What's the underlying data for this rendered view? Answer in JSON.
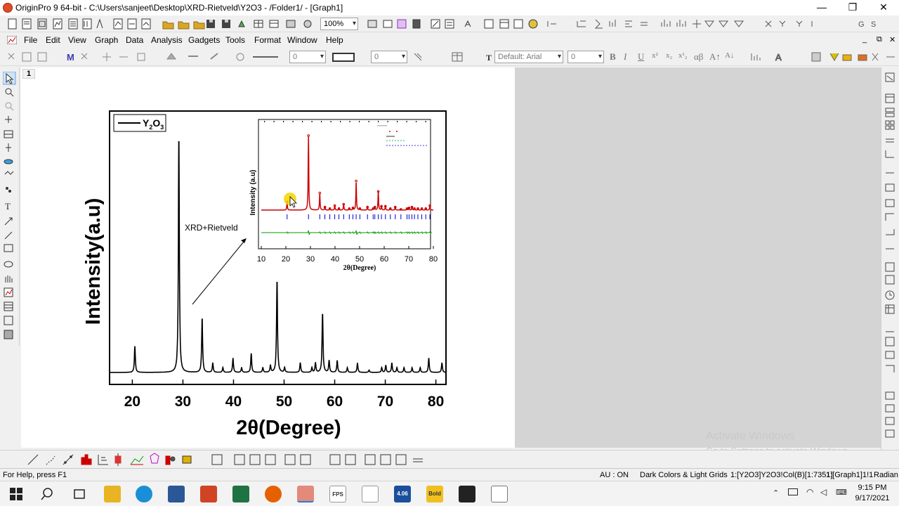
{
  "window": {
    "title": "OriginPro 9 64-bit - C:\\Users\\sanjeet\\Desktop\\XRD-Rietveld\\Y2O3 - /Folder1/ - [Graph1]",
    "minimize": "—",
    "maximize": "❐",
    "close": "✕",
    "sub_controls": [
      "_",
      "⧉",
      "✕"
    ]
  },
  "toolbar1": {
    "zoom": "100%"
  },
  "menu": [
    "File",
    "Edit",
    "View",
    "Graph",
    "Data",
    "Analysis",
    "Gadgets",
    "Tools",
    "Format",
    "Window",
    "Help"
  ],
  "toolbar2": {
    "line_width": "0",
    "pattern_width": "0",
    "font": "Default: Arial",
    "font_size": "0",
    "format_buttons": [
      "B",
      "I",
      "U",
      "x²",
      "x₂",
      "x¹₂",
      "αβ",
      "A↑",
      "A↓"
    ]
  },
  "graph": {
    "layer_number": "1",
    "legend_label": "Y2O3",
    "ylabel": "Intensity(a.u)",
    "xlabel": "2θ(Degree)",
    "annotation": "XRD+Rietveld",
    "inset": {
      "ylabel": "Intensity (a.u)",
      "xlabel": "2θ(Degree)",
      "xticks": [
        "10",
        "20",
        "30",
        "40",
        "50",
        "60",
        "70",
        "80"
      ]
    }
  },
  "chart_data": {
    "type": "line",
    "title": "",
    "xlabel": "2θ(Degree)",
    "ylabel": "Intensity(a.u)",
    "xlim": [
      15.5,
      82
    ],
    "ylim": [
      0,
      100
    ],
    "xticks": [
      20,
      30,
      40,
      50,
      60,
      70,
      80
    ],
    "legend": "top-left",
    "grid": false,
    "series": [
      {
        "name": "Y2O3",
        "peaks": [
          [
            20.5,
            11
          ],
          [
            29.2,
            100
          ],
          [
            33.8,
            23
          ],
          [
            35.9,
            4
          ],
          [
            37.9,
            2
          ],
          [
            39.9,
            6
          ],
          [
            41.6,
            2
          ],
          [
            43.5,
            8
          ],
          [
            45.8,
            2
          ],
          [
            47.3,
            3
          ],
          [
            48.6,
            39
          ],
          [
            50.1,
            2
          ],
          [
            53.2,
            4
          ],
          [
            55.5,
            2
          ],
          [
            56.2,
            4
          ],
          [
            57.6,
            25
          ],
          [
            58.9,
            5
          ],
          [
            60.5,
            5
          ],
          [
            62.5,
            2
          ],
          [
            64.5,
            4
          ],
          [
            66.8,
            1
          ],
          [
            69.3,
            2
          ],
          [
            70.1,
            3
          ],
          [
            71.3,
            4
          ],
          [
            72.3,
            2
          ],
          [
            73.7,
            2
          ],
          [
            75.3,
            2
          ],
          [
            76.9,
            2
          ],
          [
            78.6,
            6
          ],
          [
            81.2,
            4
          ]
        ]
      }
    ]
  },
  "statusbar": {
    "help": "For Help, press F1",
    "au": "AU : ON",
    "theme": "Dark Colors & Light Grids",
    "data_info": "1:[Y2O3]Y2O3!Col(B)[1:7351]",
    "graph_info": "1:[Graph1]1!1",
    "units": "Radian"
  },
  "watermark": {
    "line1": "Activate Windows",
    "line2": "Go to Settings to activate Windows."
  },
  "taskbar": {
    "time": "9:15 PM",
    "date": "9/17/2021",
    "apps": [
      "File Explorer",
      "Edge",
      "Word",
      "PowerPoint",
      "Excel",
      "Firefox",
      "Origin",
      "FPS Toolbar",
      "XRD",
      "GFour 4.06",
      "Bold Six",
      "Photos",
      "Notepad"
    ],
    "labels": [
      "FPS",
      "4.06",
      "Bold"
    ]
  },
  "colors": {
    "titlebar": "#ffffff",
    "workspace_grey": "#d4d4d4",
    "plot_line": "#000000",
    "rietveld_fit": "#cc0000",
    "difference_curve": "#009900",
    "bragg_marks": "#0000cc",
    "cursor_highlight": "#f5d400"
  }
}
